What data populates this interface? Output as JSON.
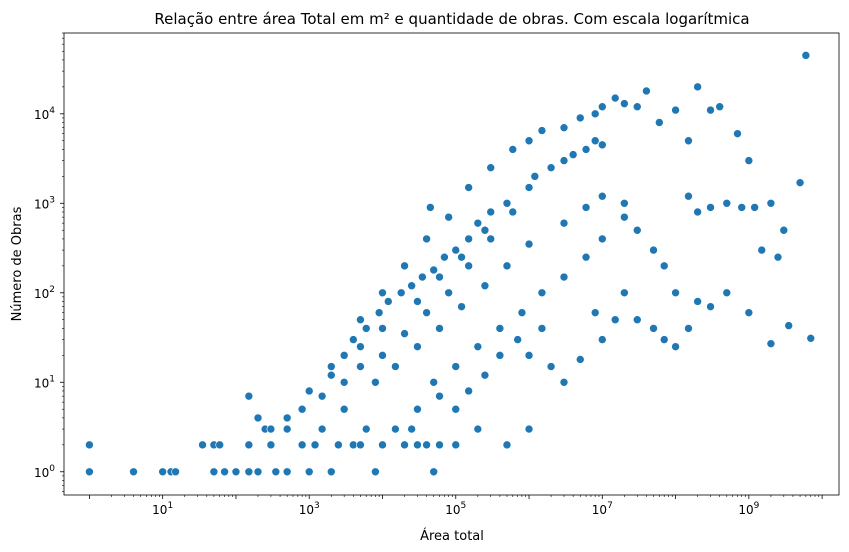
{
  "chart_data": {
    "type": "scatter",
    "title": "Relação entre área Total em m² e quantidade de obras. Com escala logarítmica",
    "xlabel": "Área total",
    "ylabel": "Número de Obras",
    "xscale": "log",
    "yscale": "log",
    "xlim": [
      0.45,
      17000000000
    ],
    "ylim": [
      0.55,
      80000
    ],
    "x_ticks": [
      {
        "base": "10",
        "exp": "1",
        "value": 10
      },
      {
        "base": "10",
        "exp": "3",
        "value": 1000
      },
      {
        "base": "10",
        "exp": "5",
        "value": 100000
      },
      {
        "base": "10",
        "exp": "7",
        "value": 10000000
      },
      {
        "base": "10",
        "exp": "9",
        "value": 1000000000
      }
    ],
    "y_ticks": [
      {
        "base": "10",
        "exp": "0",
        "value": 1
      },
      {
        "base": "10",
        "exp": "1",
        "value": 10
      },
      {
        "base": "10",
        "exp": "2",
        "value": 100
      },
      {
        "base": "10",
        "exp": "3",
        "value": 1000
      },
      {
        "base": "10",
        "exp": "4",
        "value": 10000
      }
    ],
    "grid": false,
    "marker_color": "#1f77b4",
    "points": [
      [
        1,
        1
      ],
      [
        1,
        2
      ],
      [
        4,
        1
      ],
      [
        10,
        1
      ],
      [
        13,
        1
      ],
      [
        15,
        1
      ],
      [
        35,
        2
      ],
      [
        50,
        2
      ],
      [
        60,
        2
      ],
      [
        50,
        1
      ],
      [
        70,
        1
      ],
      [
        100,
        1
      ],
      [
        150,
        7
      ],
      [
        150,
        2
      ],
      [
        150,
        1
      ],
      [
        200,
        4
      ],
      [
        200,
        1
      ],
      [
        250,
        3
      ],
      [
        300,
        2
      ],
      [
        350,
        1
      ],
      [
        500,
        1
      ],
      [
        1000,
        1
      ],
      [
        2000,
        1
      ],
      [
        8000,
        1
      ],
      [
        50000,
        1
      ],
      [
        100000,
        2
      ],
      [
        200000,
        3
      ],
      [
        500000,
        2
      ],
      [
        1000000,
        3
      ],
      [
        4000,
        2
      ],
      [
        6000,
        3
      ],
      [
        10000,
        2
      ],
      [
        20000,
        2
      ],
      [
        30000,
        2
      ],
      [
        40000,
        2
      ],
      [
        60000,
        2
      ],
      [
        300,
        3
      ],
      [
        500,
        3
      ],
      [
        800,
        2
      ],
      [
        1200,
        2
      ],
      [
        1500,
        3
      ],
      [
        2500,
        2
      ],
      [
        5000,
        2
      ],
      [
        15000,
        3
      ],
      [
        25000,
        3
      ],
      [
        500,
        4
      ],
      [
        800,
        5
      ],
      [
        1500,
        7
      ],
      [
        3000,
        10
      ],
      [
        5000,
        15
      ],
      [
        10000,
        20
      ],
      [
        20000,
        35
      ],
      [
        40000,
        60
      ],
      [
        80000,
        100
      ],
      [
        150000,
        200
      ],
      [
        300000,
        400
      ],
      [
        600000,
        800
      ],
      [
        1000000,
        1500
      ],
      [
        2000000,
        2500
      ],
      [
        4000000,
        3500
      ],
      [
        8000000,
        5000
      ],
      [
        1000,
        8
      ],
      [
        2000,
        12
      ],
      [
        5000,
        25
      ],
      [
        10000,
        40
      ],
      [
        30000,
        80
      ],
      [
        60000,
        150
      ],
      [
        120000,
        250
      ],
      [
        250000,
        500
      ],
      [
        500000,
        1000
      ],
      [
        1200000,
        2000
      ],
      [
        3000000,
        3000
      ],
      [
        6000000,
        4000
      ],
      [
        10000000,
        4500
      ],
      [
        3000,
        5
      ],
      [
        8000,
        10
      ],
      [
        15000,
        15
      ],
      [
        30000,
        25
      ],
      [
        60000,
        40
      ],
      [
        120000,
        70
      ],
      [
        250000,
        120
      ],
      [
        500000,
        200
      ],
      [
        1000000,
        350
      ],
      [
        3000000,
        600
      ],
      [
        6000000,
        900
      ],
      [
        10000000,
        1200
      ],
      [
        50000,
        10
      ],
      [
        100000,
        15
      ],
      [
        200000,
        25
      ],
      [
        400000,
        40
      ],
      [
        800000,
        60
      ],
      [
        1500000,
        100
      ],
      [
        3000000,
        150
      ],
      [
        6000000,
        250
      ],
      [
        10000000,
        400
      ],
      [
        20000000,
        700
      ],
      [
        5000,
        50
      ],
      [
        10000,
        100
      ],
      [
        20000,
        200
      ],
      [
        40000,
        400
      ],
      [
        45000,
        900
      ],
      [
        80000,
        700
      ],
      [
        150000,
        1500
      ],
      [
        300000,
        2500
      ],
      [
        600000,
        4000
      ],
      [
        1000000,
        5000
      ],
      [
        1500000,
        6500
      ],
      [
        3000000,
        7000
      ],
      [
        5000000,
        9000
      ],
      [
        8000000,
        10000
      ],
      [
        10000000,
        12000
      ],
      [
        15000000,
        15000
      ],
      [
        20000000,
        13000
      ],
      [
        30000000,
        12000
      ],
      [
        40000000,
        18000
      ],
      [
        60000000,
        8000
      ],
      [
        100000000,
        11000
      ],
      [
        150000000,
        5000
      ],
      [
        200000000,
        20000
      ],
      [
        300000000,
        11000
      ],
      [
        400000000,
        12000
      ],
      [
        700000000,
        6000
      ],
      [
        1000000000,
        3000
      ],
      [
        20000000,
        1000
      ],
      [
        30000000,
        500
      ],
      [
        50000000,
        300
      ],
      [
        70000000,
        200
      ],
      [
        100000000,
        100
      ],
      [
        150000000,
        1200
      ],
      [
        200000000,
        800
      ],
      [
        300000000,
        900
      ],
      [
        500000000,
        1000
      ],
      [
        800000000,
        900
      ],
      [
        1200000000,
        900
      ],
      [
        2000000000,
        1000
      ],
      [
        3000000000,
        500
      ],
      [
        5000000000,
        1700
      ],
      [
        20000000,
        100
      ],
      [
        30000000,
        50
      ],
      [
        50000000,
        40
      ],
      [
        70000000,
        30
      ],
      [
        100000000,
        25
      ],
      [
        150000000,
        40
      ],
      [
        200000000,
        80
      ],
      [
        300000000,
        70
      ],
      [
        500000000,
        100
      ],
      [
        1000000000,
        60
      ],
      [
        1500000000,
        300
      ],
      [
        2500000000,
        250
      ],
      [
        2000000000,
        27
      ],
      [
        3500000000,
        43
      ],
      [
        7000000000,
        31
      ],
      [
        6000000000,
        45000
      ],
      [
        1000000,
        20
      ],
      [
        2000000,
        15
      ],
      [
        3000000,
        10
      ],
      [
        5000000,
        18
      ],
      [
        10000000,
        30
      ],
      [
        15000000,
        50
      ],
      [
        8000000,
        60
      ],
      [
        1500000,
        40
      ],
      [
        700000,
        30
      ],
      [
        400000,
        20
      ],
      [
        250000,
        12
      ],
      [
        150000,
        8
      ],
      [
        100000,
        5
      ],
      [
        60000,
        7
      ],
      [
        30000,
        5
      ],
      [
        2000,
        15
      ],
      [
        3000,
        20
      ],
      [
        4000,
        30
      ],
      [
        6000,
        40
      ],
      [
        9000,
        60
      ],
      [
        12000,
        80
      ],
      [
        18000,
        100
      ],
      [
        25000,
        120
      ],
      [
        35000,
        150
      ],
      [
        50000,
        180
      ],
      [
        70000,
        250
      ],
      [
        100000,
        300
      ],
      [
        150000,
        400
      ],
      [
        200000,
        600
      ],
      [
        300000,
        800
      ]
    ]
  }
}
